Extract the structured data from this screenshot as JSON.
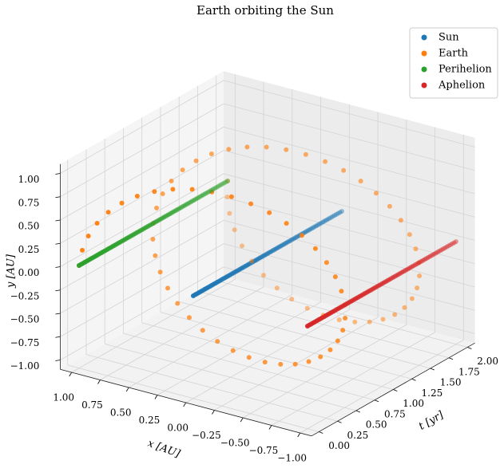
{
  "chart_data": {
    "type": "scatter3d",
    "title": "Earth orbiting the Sun",
    "xlabel": "x [AU]",
    "ylabel": "y [AU]",
    "tlabel": "t [yr]",
    "xlim": [
      -1.1,
      1.1
    ],
    "ylim": [
      -1.1,
      1.1
    ],
    "tlim": [
      -0.1,
      2.1
    ],
    "xticks": [
      {
        "value": -1,
        "label": "−1.00"
      },
      {
        "value": -0.75,
        "label": "−0.75"
      },
      {
        "value": -0.5,
        "label": "−0.50"
      },
      {
        "value": -0.25,
        "label": "−0.25"
      },
      {
        "value": 0,
        "label": "0.00"
      },
      {
        "value": 0.25,
        "label": "0.25"
      },
      {
        "value": 0.5,
        "label": "0.50"
      },
      {
        "value": 0.75,
        "label": "0.75"
      },
      {
        "value": 1,
        "label": "1.00"
      }
    ],
    "yticks": [
      {
        "value": -1,
        "label": "−1.00"
      },
      {
        "value": -0.75,
        "label": "−0.75"
      },
      {
        "value": -0.5,
        "label": "−0.50"
      },
      {
        "value": -0.25,
        "label": "−0.25"
      },
      {
        "value": 0,
        "label": "0.00"
      },
      {
        "value": 0.25,
        "label": "0.25"
      },
      {
        "value": 0.5,
        "label": "0.50"
      },
      {
        "value": 0.75,
        "label": "0.75"
      },
      {
        "value": 1,
        "label": "1.00"
      }
    ],
    "tticks": [
      {
        "value": 0,
        "label": "0.00"
      },
      {
        "value": 0.25,
        "label": "0.25"
      },
      {
        "value": 0.5,
        "label": "0.50"
      },
      {
        "value": 0.75,
        "label": "0.75"
      },
      {
        "value": 1,
        "label": "1.00"
      },
      {
        "value": 1.25,
        "label": "1.25"
      },
      {
        "value": 1.5,
        "label": "1.50"
      },
      {
        "value": 1.75,
        "label": "1.75"
      },
      {
        "value": 2,
        "label": "2.00"
      }
    ],
    "grid": true,
    "legend": "upper right",
    "t": [
      0,
      0.025,
      0.05,
      0.075,
      0.1,
      0.125,
      0.15,
      0.175,
      0.2,
      0.225,
      0.25,
      0.275,
      0.3,
      0.325,
      0.35,
      0.375,
      0.4,
      0.425,
      0.45,
      0.475,
      0.5,
      0.525,
      0.55,
      0.575,
      0.6,
      0.625,
      0.65,
      0.675,
      0.7,
      0.725,
      0.75,
      0.775,
      0.8,
      0.825,
      0.85,
      0.875,
      0.9,
      0.925,
      0.95,
      0.975,
      1,
      1.025,
      1.05,
      1.075,
      1.1,
      1.125,
      1.15,
      1.175,
      1.2,
      1.225,
      1.25,
      1.275,
      1.3,
      1.325,
      1.35,
      1.375,
      1.4,
      1.425,
      1.45,
      1.475,
      1.5,
      1.525,
      1.55,
      1.575,
      1.6,
      1.625,
      1.65,
      1.675,
      1.7,
      1.725,
      1.75,
      1.775,
      1.8,
      1.825,
      1.85,
      1.875,
      1.9,
      1.925,
      1.95,
      1.975,
      2
    ],
    "series": [
      {
        "name": "Sun",
        "color": "#1f77b4",
        "x": 0,
        "y": 0
      },
      {
        "name": "Earth",
        "color": "#ff7f0e",
        "x": [
          1,
          0.988,
          0.951,
          0.891,
          0.809,
          0.707,
          0.588,
          0.454,
          0.309,
          0.156,
          0,
          -0.156,
          -0.309,
          -0.454,
          -0.588,
          -0.707,
          -0.809,
          -0.891,
          -0.951,
          -0.988,
          -1,
          -0.988,
          -0.951,
          -0.891,
          -0.809,
          -0.707,
          -0.588,
          -0.454,
          -0.309,
          -0.156,
          0,
          0.156,
          0.309,
          0.454,
          0.588,
          0.707,
          0.809,
          0.891,
          0.951,
          0.988,
          1,
          0.988,
          0.951,
          0.891,
          0.809,
          0.707,
          0.588,
          0.454,
          0.309,
          0.156,
          0,
          -0.156,
          -0.309,
          -0.454,
          -0.588,
          -0.707,
          -0.809,
          -0.891,
          -0.951,
          -0.988,
          -1,
          -0.988,
          -0.951,
          -0.891,
          -0.809,
          -0.707,
          -0.588,
          -0.454,
          -0.309,
          -0.156,
          0,
          0.156,
          0.309,
          0.454,
          0.588,
          0.707,
          0.809,
          0.891,
          0.951,
          0.988,
          1
        ],
        "y": [
          0,
          0.156,
          0.309,
          0.454,
          0.588,
          0.707,
          0.809,
          0.891,
          0.951,
          0.988,
          1,
          0.988,
          0.951,
          0.891,
          0.809,
          0.707,
          0.588,
          0.454,
          0.309,
          0.156,
          0,
          -0.156,
          -0.309,
          -0.454,
          -0.588,
          -0.707,
          -0.809,
          -0.891,
          -0.951,
          -0.988,
          -1,
          -0.988,
          -0.951,
          -0.891,
          -0.809,
          -0.707,
          -0.588,
          -0.454,
          -0.309,
          -0.156,
          0,
          0.156,
          0.309,
          0.454,
          0.588,
          0.707,
          0.809,
          0.891,
          0.951,
          0.988,
          1,
          0.988,
          0.951,
          0.891,
          0.809,
          0.707,
          0.588,
          0.454,
          0.309,
          0.156,
          0,
          -0.156,
          -0.309,
          -0.454,
          -0.588,
          -0.707,
          -0.809,
          -0.891,
          -0.951,
          -0.988,
          -1,
          -0.988,
          -0.951,
          -0.891,
          -0.809,
          -0.707,
          -0.588,
          -0.454,
          -0.309,
          -0.156,
          0
        ]
      },
      {
        "name": "Perihelion",
        "color": "#2ca02c",
        "x": 1,
        "y": 0
      },
      {
        "name": "Aphelion",
        "color": "#d62728",
        "x": -1,
        "y": 0
      }
    ]
  }
}
